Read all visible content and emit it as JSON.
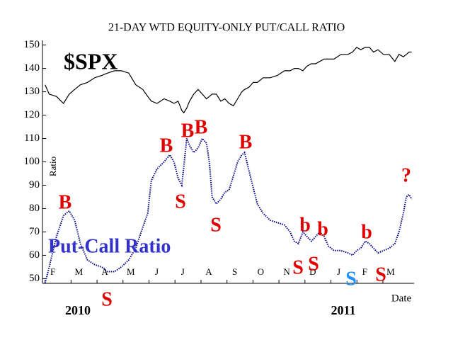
{
  "chart_data": {
    "type": "line",
    "title": "21-DAY WTD EQUITY-ONLY PUT/CALL RATIO",
    "y_label": "Ratio",
    "x_label": "Date",
    "x": [
      0,
      0.16,
      0.44,
      0.71,
      0.93,
      1.14,
      1.36,
      1.63,
      1.91,
      2.18,
      2.4,
      2.67,
      2.94,
      3.22,
      3.49,
      3.76,
      3.95,
      4.09,
      4.31,
      4.58,
      4.8,
      4.96,
      5.12,
      5.26,
      5.34,
      5.45,
      5.56,
      5.72,
      5.89,
      6.05,
      6.21,
      6.32,
      6.43,
      6.59,
      6.76,
      6.92,
      7.08,
      7.25,
      7.41,
      7.57,
      7.68,
      7.85,
      8.01,
      8.17,
      8.39,
      8.66,
      8.94,
      9.21,
      9.43,
      9.59,
      9.75,
      9.92,
      10.08,
      10.25,
      10.41,
      10.57,
      10.74,
      10.9,
      11.12,
      11.39,
      11.66,
      11.83,
      11.99,
      12.15,
      12.32,
      12.48,
      12.64,
      12.81,
      13.02,
      13.24,
      13.46,
      13.62,
      13.79,
      13.9,
      14.01,
      14.11
    ],
    "series": [
      {
        "name": "$SPX",
        "color": "#000000",
        "style": "solid",
        "values": [
          133,
          129,
          128,
          125,
          129,
          131,
          133,
          134,
          136,
          137,
          138,
          139,
          139,
          138,
          133,
          131,
          128,
          126,
          125,
          127,
          126,
          125,
          126,
          122,
          121,
          123,
          126,
          129,
          131,
          129,
          127,
          128,
          129,
          129,
          126,
          127,
          125,
          124,
          127,
          130,
          131,
          132,
          134,
          134,
          136,
          136,
          137,
          139,
          139,
          140,
          140,
          139,
          141,
          142,
          142,
          143,
          144,
          144,
          144,
          146,
          146,
          147,
          149,
          148,
          149,
          149,
          147,
          148,
          146,
          146,
          143,
          146,
          145,
          146,
          147,
          147
        ]
      },
      {
        "name": "Put-Call Ratio",
        "color": "#00008b",
        "style": "dotted",
        "values": [
          48,
          55,
          68,
          77,
          79,
          75,
          65,
          58,
          56,
          55,
          53,
          53,
          55,
          58,
          63,
          72,
          78,
          92,
          97,
          100,
          103,
          100,
          93,
          90,
          98,
          110,
          107,
          104,
          106,
          110,
          108,
          100,
          85,
          82,
          84,
          87,
          88,
          94,
          100,
          103,
          104,
          96,
          89,
          82,
          78,
          75,
          74,
          73,
          70,
          66,
          65,
          70,
          68,
          66,
          68,
          70,
          68,
          64,
          62,
          62,
          61,
          60,
          62,
          63,
          66,
          65,
          63,
          61,
          62,
          63,
          65,
          70,
          78,
          85,
          86,
          84
        ]
      }
    ],
    "xlim": [
      -0.1,
      14.2
    ],
    "xticks": [
      {
        "value": 0,
        "label": "F"
      },
      {
        "value": 1,
        "label": "M"
      },
      {
        "value": 2,
        "label": "A"
      },
      {
        "value": 3,
        "label": "M"
      },
      {
        "value": 4,
        "label": "J"
      },
      {
        "value": 5,
        "label": "J"
      },
      {
        "value": 6,
        "label": "A"
      },
      {
        "value": 7,
        "label": "S"
      },
      {
        "value": 8,
        "label": "O"
      },
      {
        "value": 9,
        "label": "N"
      },
      {
        "value": 10,
        "label": "D"
      },
      {
        "value": 11,
        "label": "J"
      },
      {
        "value": 12,
        "label": "F"
      },
      {
        "value": 13,
        "label": "M"
      }
    ],
    "ylim": [
      48,
      152
    ],
    "yticks": [
      50,
      60,
      70,
      80,
      90,
      100,
      110,
      120,
      130,
      140,
      150
    ],
    "annotations": [
      {
        "text": "B",
        "color": "#e00000"
      },
      {
        "text": "B",
        "color": "#e00000"
      },
      {
        "text": "B",
        "color": "#e00000"
      },
      {
        "text": "B",
        "color": "#e00000"
      },
      {
        "text": "B",
        "color": "#e00000"
      },
      {
        "text": "S",
        "color": "#e00000"
      },
      {
        "text": "S",
        "color": "#e00000"
      },
      {
        "text": "S",
        "color": "#e00000"
      },
      {
        "text": "S",
        "color": "#e00000"
      },
      {
        "text": "S",
        "color": "#e00000"
      },
      {
        "text": "S",
        "color": "#e00000"
      },
      {
        "text": "S",
        "color": "#1e90ff"
      },
      {
        "text": "b",
        "color": "#e00000"
      },
      {
        "text": "b",
        "color": "#e00000"
      },
      {
        "text": "b",
        "color": "#e00000"
      },
      {
        "text": "?",
        "color": "#e00000"
      },
      {
        "text": "2010",
        "color": "#000000"
      },
      {
        "text": "2011",
        "color": "#000000"
      }
    ]
  }
}
